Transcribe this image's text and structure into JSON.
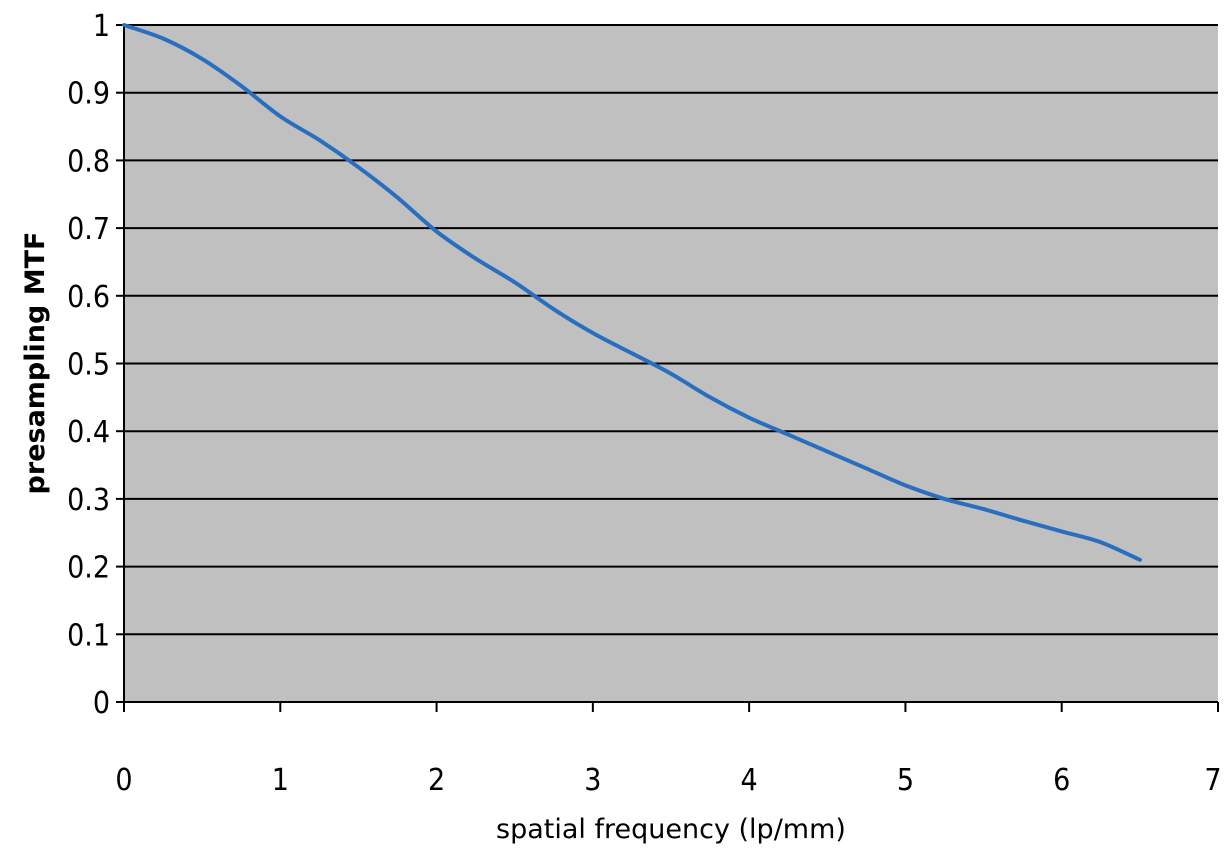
{
  "chart_data": {
    "type": "line",
    "title": "",
    "xlabel": "spatial frequency (lp/mm)",
    "ylabel": "presampling MTF",
    "xlim": [
      0,
      7
    ],
    "ylim": [
      0,
      1
    ],
    "x_ticks": [
      "0",
      "1",
      "2",
      "3",
      "4",
      "5",
      "6",
      "7"
    ],
    "y_ticks": [
      "0",
      "0.1",
      "0.2",
      "0.3",
      "0.4",
      "0.5",
      "0.6",
      "0.7",
      "0.8",
      "0.9",
      "1"
    ],
    "grid": "horizontal",
    "legend": "none",
    "colors": {
      "plot_background": "#c0c0c0",
      "line": "#2a6fbf",
      "gridline": "#000000"
    },
    "series": [
      {
        "x": [
          0,
          0.25,
          0.5,
          0.75,
          1.0,
          1.25,
          1.5,
          1.75,
          2.0,
          2.25,
          2.5,
          2.75,
          3.0,
          3.25,
          3.5,
          3.75,
          4.0,
          4.25,
          4.5,
          4.75,
          5.0,
          5.25,
          5.5,
          5.75,
          6.0,
          6.25,
          6.5
        ],
        "values": [
          1.0,
          0.98,
          0.95,
          0.91,
          0.865,
          0.83,
          0.79,
          0.745,
          0.695,
          0.655,
          0.62,
          0.58,
          0.545,
          0.515,
          0.485,
          0.45,
          0.42,
          0.395,
          0.37,
          0.345,
          0.32,
          0.3,
          0.285,
          0.268,
          0.252,
          0.236,
          0.21
        ]
      }
    ]
  }
}
